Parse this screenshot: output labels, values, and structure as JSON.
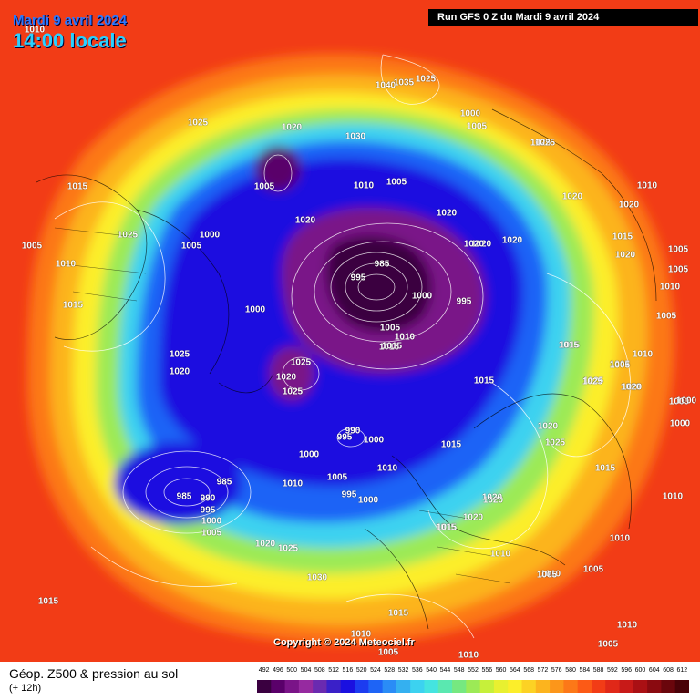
{
  "header": {
    "date": "Mardi 9 avril 2024",
    "local_time": "14:00 locale",
    "run_info": "Run GFS 0 Z du Mardi 9 avril 2024"
  },
  "copyright": "Copyright © 2024 Meteociel.fr",
  "legend": {
    "title": "Géop. Z500 & pression au sol",
    "subtitle": "(+ 12h)",
    "levels": [
      492,
      496,
      500,
      504,
      508,
      512,
      516,
      520,
      524,
      528,
      532,
      536,
      540,
      544,
      548,
      552,
      556,
      560,
      564,
      568,
      572,
      576,
      580,
      584,
      588,
      592,
      596,
      600,
      604,
      608,
      612
    ],
    "colors": [
      "#3a0040",
      "#5a006a",
      "#7a1488",
      "#962aa0",
      "#6a2ab0",
      "#3a20c8",
      "#1a10e0",
      "#1c3cf0",
      "#1e64f6",
      "#2a8cf6",
      "#34b0f0",
      "#3cd2f0",
      "#44e4e0",
      "#5ae8b0",
      "#76e880",
      "#9cea56",
      "#c6f03a",
      "#e8f030",
      "#fcee2a",
      "#fcd224",
      "#fcb41e",
      "#fc961a",
      "#fc7818",
      "#fc5a16",
      "#f23c16",
      "#e02818",
      "#c81a18",
      "#aa1014",
      "#8a0a10",
      "#6a060c",
      "#4a0208"
    ]
  },
  "pressure_labels": [
    {
      "text": "1010"
    },
    {
      "text": "1025"
    },
    {
      "text": "1015"
    },
    {
      "text": "1005"
    },
    {
      "text": "1005"
    },
    {
      "text": "1000"
    },
    {
      "text": "1010"
    },
    {
      "text": "1025"
    },
    {
      "text": "1005"
    },
    {
      "text": "1015"
    },
    {
      "text": "1020"
    },
    {
      "text": "1000"
    },
    {
      "text": "1020"
    },
    {
      "text": "1025"
    },
    {
      "text": "1020"
    },
    {
      "text": "1040"
    },
    {
      "text": "1035"
    },
    {
      "text": "1025"
    },
    {
      "text": "1030"
    },
    {
      "text": "1010"
    },
    {
      "text": "1005"
    },
    {
      "text": "1020"
    },
    {
      "text": "1000"
    },
    {
      "text": "1005"
    },
    {
      "text": "1025"
    },
    {
      "text": "1020"
    },
    {
      "text": "1020"
    },
    {
      "text": "1020"
    },
    {
      "text": "1020"
    },
    {
      "text": "1020"
    },
    {
      "text": "985"
    },
    {
      "text": "995"
    },
    {
      "text": "1000"
    },
    {
      "text": "995"
    },
    {
      "text": "1005"
    },
    {
      "text": "1010"
    },
    {
      "text": "1015"
    },
    {
      "text": "1015"
    },
    {
      "text": "1025"
    },
    {
      "text": "1020"
    },
    {
      "text": "1025"
    },
    {
      "text": "990"
    },
    {
      "text": "995"
    },
    {
      "text": "1000"
    },
    {
      "text": "1000"
    },
    {
      "text": "1005"
    },
    {
      "text": "995"
    },
    {
      "text": "1000"
    },
    {
      "text": "1010"
    },
    {
      "text": "1015"
    },
    {
      "text": "1020"
    },
    {
      "text": "1025"
    },
    {
      "text": "1020"
    },
    {
      "text": "1015"
    },
    {
      "text": "985"
    },
    {
      "text": "985"
    },
    {
      "text": "990"
    },
    {
      "text": "995"
    },
    {
      "text": "1000"
    },
    {
      "text": "1005"
    },
    {
      "text": "1010"
    },
    {
      "text": "1020"
    },
    {
      "text": "1025"
    },
    {
      "text": "1030"
    },
    {
      "text": "1020"
    },
    {
      "text": "1015"
    },
    {
      "text": "1010"
    },
    {
      "text": "1005"
    },
    {
      "text": "1010"
    },
    {
      "text": "1005"
    },
    {
      "text": "1015"
    },
    {
      "text": "1010"
    },
    {
      "text": "1010"
    },
    {
      "text": "1010"
    },
    {
      "text": "1005"
    },
    {
      "text": "1015"
    },
    {
      "text": "1020"
    },
    {
      "text": "1025"
    },
    {
      "text": "1015"
    },
    {
      "text": "1005"
    },
    {
      "text": "1010"
    },
    {
      "text": "1005"
    },
    {
      "text": "1005"
    },
    {
      "text": "1005"
    },
    {
      "text": "1010"
    },
    {
      "text": "1015"
    },
    {
      "text": "1020"
    },
    {
      "text": "1010"
    },
    {
      "text": "1000"
    },
    {
      "text": "1000"
    },
    {
      "text": "1000"
    },
    {
      "text": "1015"
    },
    {
      "text": "1020"
    },
    {
      "text": "1025"
    },
    {
      "text": "1005"
    },
    {
      "text": "1010"
    },
    {
      "text": "1010"
    },
    {
      "text": "1005"
    },
    {
      "text": "1015"
    },
    {
      "text": "1020"
    },
    {
      "text": "1025"
    },
    {
      "text": "1015"
    }
  ]
}
